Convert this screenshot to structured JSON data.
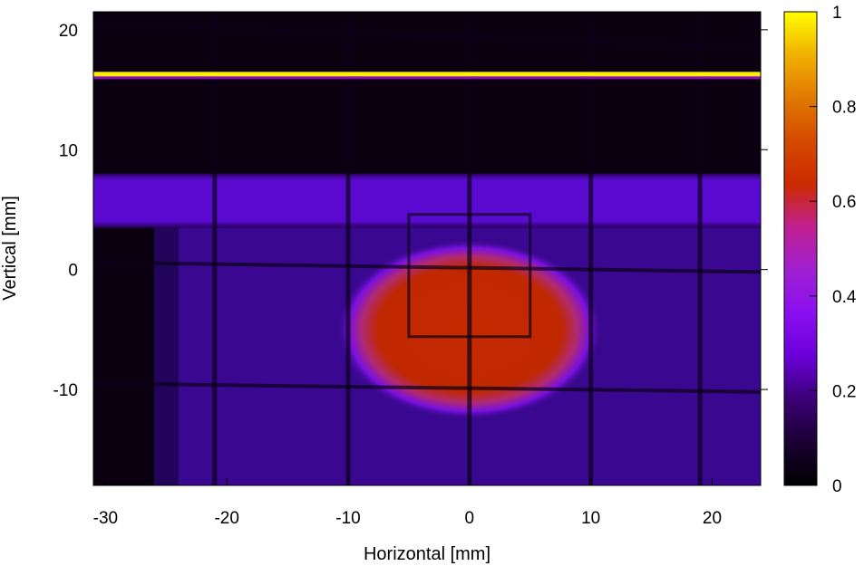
{
  "chart_data": {
    "type": "heatmap",
    "title": "",
    "xlabel": "Horizontal [mm]",
    "ylabel": "Vertical [mm]",
    "xlim": [
      -31,
      24
    ],
    "ylim": [
      -18,
      21.5
    ],
    "x_ticks": [
      -30,
      -20,
      -10,
      0,
      10,
      20
    ],
    "y_ticks": [
      -10,
      0,
      10,
      20
    ],
    "colorbar": {
      "range": [
        0,
        1
      ],
      "ticks": [
        0,
        0.2,
        0.4,
        0.6,
        0.8,
        1
      ],
      "tick_labels": [
        "0",
        "0.2",
        "0.4",
        "0.6",
        "0.8",
        "1"
      ],
      "colormap": [
        "#000000",
        "#1a0033",
        "#3b0075",
        "#6a00d8",
        "#8a0ff0",
        "#a020d0",
        "#c02090",
        "#cc2a00",
        "#d44a00",
        "#e07a00",
        "#f0b000",
        "#ffff00"
      ]
    },
    "features": [
      {
        "name": "bright line",
        "y": 16.3,
        "x": [
          -31,
          24
        ],
        "intensity": 1.0
      },
      {
        "name": "band",
        "y": [
          3.5,
          8
        ],
        "x": [
          -31,
          24
        ],
        "intensity": 0.2
      },
      {
        "name": "spot",
        "center": [
          0,
          -5
        ],
        "radius": [
          8,
          5.5
        ],
        "intensity": 0.5
      },
      {
        "name": "background",
        "y": [
          -18,
          3.5
        ],
        "x": [
          -24,
          24
        ],
        "intensity": 0.12
      }
    ]
  }
}
